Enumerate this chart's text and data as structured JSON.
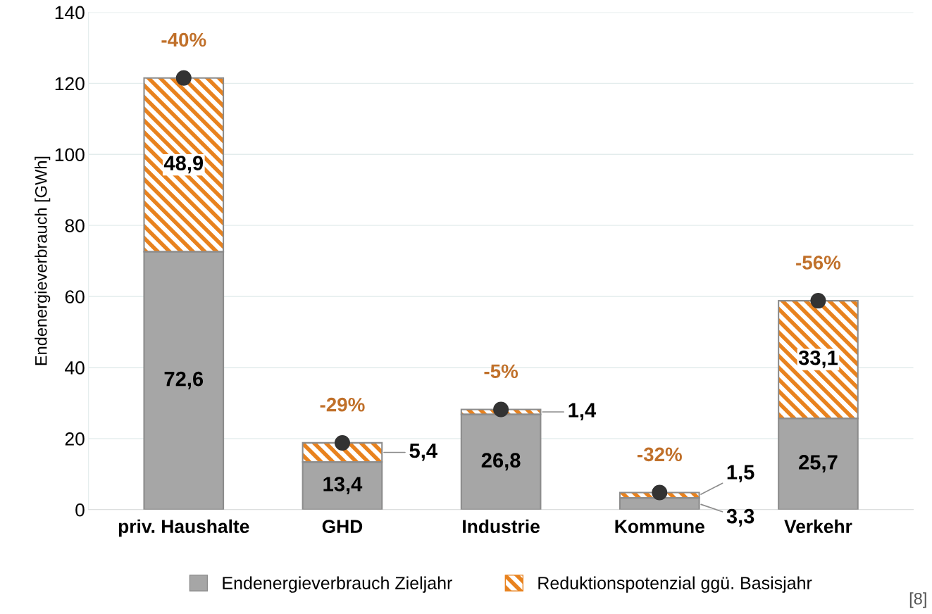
{
  "chart_data": {
    "type": "bar",
    "stacked": true,
    "ylabel": "Endenergieverbrauch [GWh]",
    "categories": [
      "priv. Haushalte",
      "GHD",
      "Industrie",
      "Kommune",
      "Verkehr"
    ],
    "series": [
      {
        "name": "Endenergieverbrauch Zieljahr",
        "color": "#a6a6a6",
        "values": [
          72.6,
          13.4,
          26.8,
          3.3,
          25.7
        ],
        "value_labels": [
          "72,6",
          "13,4",
          "26,8",
          "3,3",
          "25,7"
        ]
      },
      {
        "name": "Reduktionspotenzial ggü. Basisjahr",
        "color": "#e8821e",
        "values": [
          48.9,
          5.4,
          1.4,
          1.5,
          33.1
        ],
        "value_labels": [
          "48,9",
          "5,4",
          "1,4",
          "1,5",
          "33,1"
        ]
      },
      {
        "type": "scatter",
        "color": "#333333",
        "marker": "circle",
        "x": [
          "priv. Haushalte",
          "GHD",
          "Industrie",
          "Kommune",
          "Verkehr"
        ],
        "values": [
          121.5,
          18.8,
          28.2,
          4.8,
          58.8
        ]
      }
    ],
    "annotations": [
      {
        "text": "-40%",
        "x": "priv. Haushalte",
        "y": 121.5
      },
      {
        "text": "-29%",
        "x": "GHD",
        "y": 18.8
      },
      {
        "text": "-5%",
        "x": "Industrie",
        "y": 28.2
      },
      {
        "text": "-32%",
        "x": "Kommune",
        "y": 4.8
      },
      {
        "text": "-56%",
        "x": "Verkehr",
        "y": 58.8
      },
      "[8]"
    ],
    "ylim": [
      0,
      140
    ],
    "yticks": [
      0,
      20,
      40,
      60,
      80,
      100,
      120,
      140
    ],
    "grid": "y",
    "legend": "bottom"
  }
}
